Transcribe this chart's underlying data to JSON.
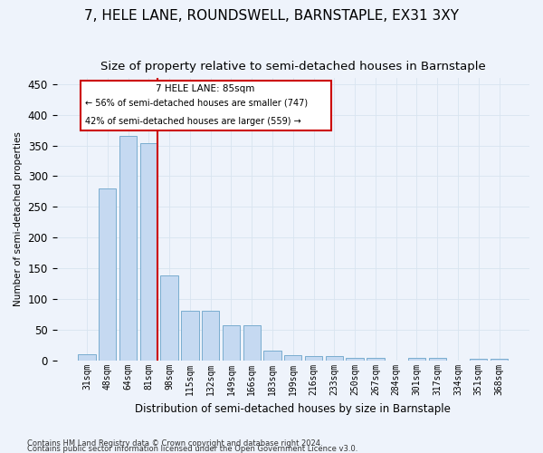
{
  "title": "7, HELE LANE, ROUNDSWELL, BARNSTAPLE, EX31 3XY",
  "subtitle": "Size of property relative to semi-detached houses in Barnstaple",
  "xlabel": "Distribution of semi-detached houses by size in Barnstaple",
  "ylabel": "Number of semi-detached properties",
  "categories": [
    "31sqm",
    "48sqm",
    "64sqm",
    "81sqm",
    "98sqm",
    "115sqm",
    "132sqm",
    "149sqm",
    "166sqm",
    "183sqm",
    "199sqm",
    "216sqm",
    "233sqm",
    "250sqm",
    "267sqm",
    "284sqm",
    "301sqm",
    "317sqm",
    "334sqm",
    "351sqm",
    "368sqm"
  ],
  "values": [
    10,
    280,
    365,
    353,
    138,
    81,
    81,
    57,
    57,
    17,
    9,
    7,
    7,
    5,
    5,
    0,
    5,
    5,
    0,
    3,
    3
  ],
  "bar_color": "#c5d9f1",
  "bar_edge_color": "#7aadcf",
  "grid_color": "#d8e4f0",
  "bg_color": "#eef3fb",
  "vline_color": "#cc0000",
  "annotation_title": "7 HELE LANE: 85sqm",
  "annotation_line1": "← 56% of semi-detached houses are smaller (747)",
  "annotation_line2": "42% of semi-detached houses are larger (559) →",
  "annotation_box_color": "#ffffff",
  "annotation_box_edge": "#cc0000",
  "footer1": "Contains HM Land Registry data © Crown copyright and database right 2024.",
  "footer2": "Contains public sector information licensed under the Open Government Licence v3.0.",
  "ylim": [
    0,
    460
  ],
  "yticks": [
    0,
    50,
    100,
    150,
    200,
    250,
    300,
    350,
    400,
    450
  ],
  "title_fontsize": 11,
  "subtitle_fontsize": 9.5,
  "vline_bar_index": 3
}
